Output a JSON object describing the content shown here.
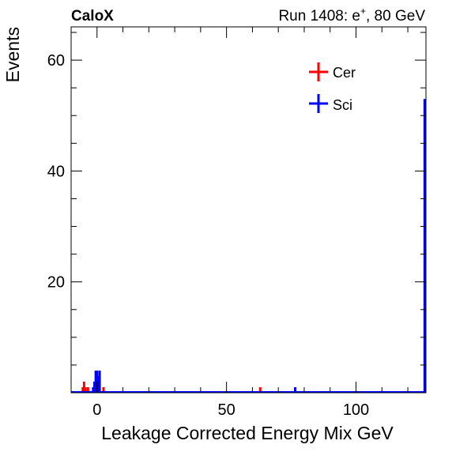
{
  "header": {
    "brand": "CaloX",
    "run_prefix": "Run 1408: e",
    "run_sup": "+",
    "run_suffix": ", 80 GeV"
  },
  "chart_data": {
    "type": "bar",
    "xlabel": "Leakage Corrected Energy Mix GeV",
    "ylabel": "Events",
    "xlim": [
      -10,
      127
    ],
    "ylim": [
      0,
      66
    ],
    "x_ticks": [
      0,
      50,
      100
    ],
    "y_ticks": [
      20,
      40,
      60
    ],
    "x_tick_labels": [
      "0",
      "50",
      "100"
    ],
    "y_tick_labels": [
      "20",
      "40",
      "60"
    ],
    "grid": false,
    "legend_position": "top-right",
    "series": [
      {
        "name": "Cer",
        "color": "#ff0000",
        "points": [
          {
            "x": -5.5,
            "y": 1
          },
          {
            "x": -5.0,
            "y": 2
          },
          {
            "x": -4.5,
            "y": 1
          },
          {
            "x": -3.5,
            "y": 1
          },
          {
            "x": -0.5,
            "y": 1
          },
          {
            "x": 2.5,
            "y": 1
          },
          {
            "x": 63,
            "y": 1
          }
        ]
      },
      {
        "name": "Sci",
        "color": "#0000ff",
        "points": [
          {
            "x": -1.5,
            "y": 1
          },
          {
            "x": -1.0,
            "y": 2
          },
          {
            "x": -0.5,
            "y": 4
          },
          {
            "x": 0.0,
            "y": 4
          },
          {
            "x": 0.5,
            "y": 3
          },
          {
            "x": 1.0,
            "y": 4
          },
          {
            "x": 76.5,
            "y": 1
          },
          {
            "x": 126.5,
            "y": 53
          }
        ]
      }
    ]
  }
}
